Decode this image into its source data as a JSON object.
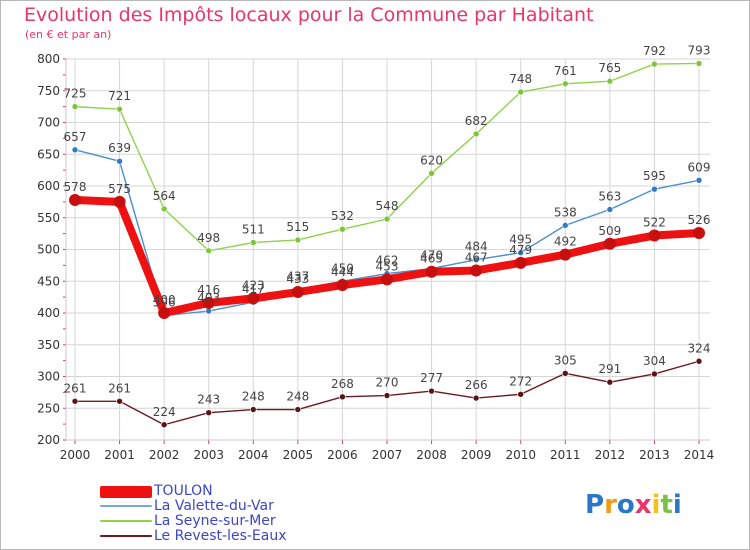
{
  "chart_data": {
    "type": "line",
    "title": "Evolution des Impôts locaux pour la Commune par Habitant",
    "subtitle": "(en € et par an)",
    "xlabel": "",
    "ylabel": "",
    "ylim": [
      200,
      800
    ],
    "yticks": [
      "200",
      "250",
      "300",
      "350",
      "400",
      "450",
      "500",
      "550",
      "600",
      "650",
      "700",
      "750",
      "800"
    ],
    "x": [
      "2000",
      "2001",
      "2002",
      "2003",
      "2004",
      "2005",
      "2006",
      "2007",
      "2008",
      "2009",
      "2010",
      "2011",
      "2012",
      "2013",
      "2014"
    ],
    "grid": true,
    "legend_position": "bottom-left",
    "series": [
      {
        "name": "La Seyne-sur-Mer",
        "color": "#8ed34a",
        "values": [
          725,
          721,
          564,
          498,
          511,
          515,
          532,
          548,
          620,
          682,
          748,
          761,
          765,
          792,
          793
        ]
      },
      {
        "name": "La Valette-du-Var",
        "color": "#4a8fd0",
        "values": [
          657,
          639,
          396,
          403,
          417,
          437,
          450,
          462,
          470,
          484,
          495,
          538,
          563,
          595,
          609
        ]
      },
      {
        "name": "Le Revest-les-Eaux",
        "color": "#6b1b1f",
        "values": [
          261,
          261,
          224,
          243,
          248,
          248,
          268,
          270,
          277,
          266,
          272,
          305,
          291,
          304,
          324
        ]
      },
      {
        "name": "TOULON",
        "color": "#ee1111",
        "values": [
          578,
          575,
          400,
          416,
          423,
          433,
          444,
          453,
          465,
          467,
          479,
          492,
          509,
          522,
          526
        ]
      }
    ]
  },
  "legend": {
    "items": [
      {
        "label": "TOULON",
        "color": "#ee1111"
      },
      {
        "label": "La Valette-du-Var",
        "color": "#7aa8d6"
      },
      {
        "label": "La Seyne-sur-Mer",
        "color": "#8ed34a"
      },
      {
        "label": "Le Revest-les-Eaux",
        "color": "#6b1b1f"
      }
    ]
  },
  "logo": {
    "letters": [
      "P",
      "r",
      "o",
      "x",
      "i",
      "t",
      "i"
    ],
    "colors": [
      "#2a76c8",
      "#f39a1a",
      "#2a76c8",
      "#e8366a",
      "#f3c21a",
      "#7cc04a",
      "#2a76c8"
    ]
  }
}
